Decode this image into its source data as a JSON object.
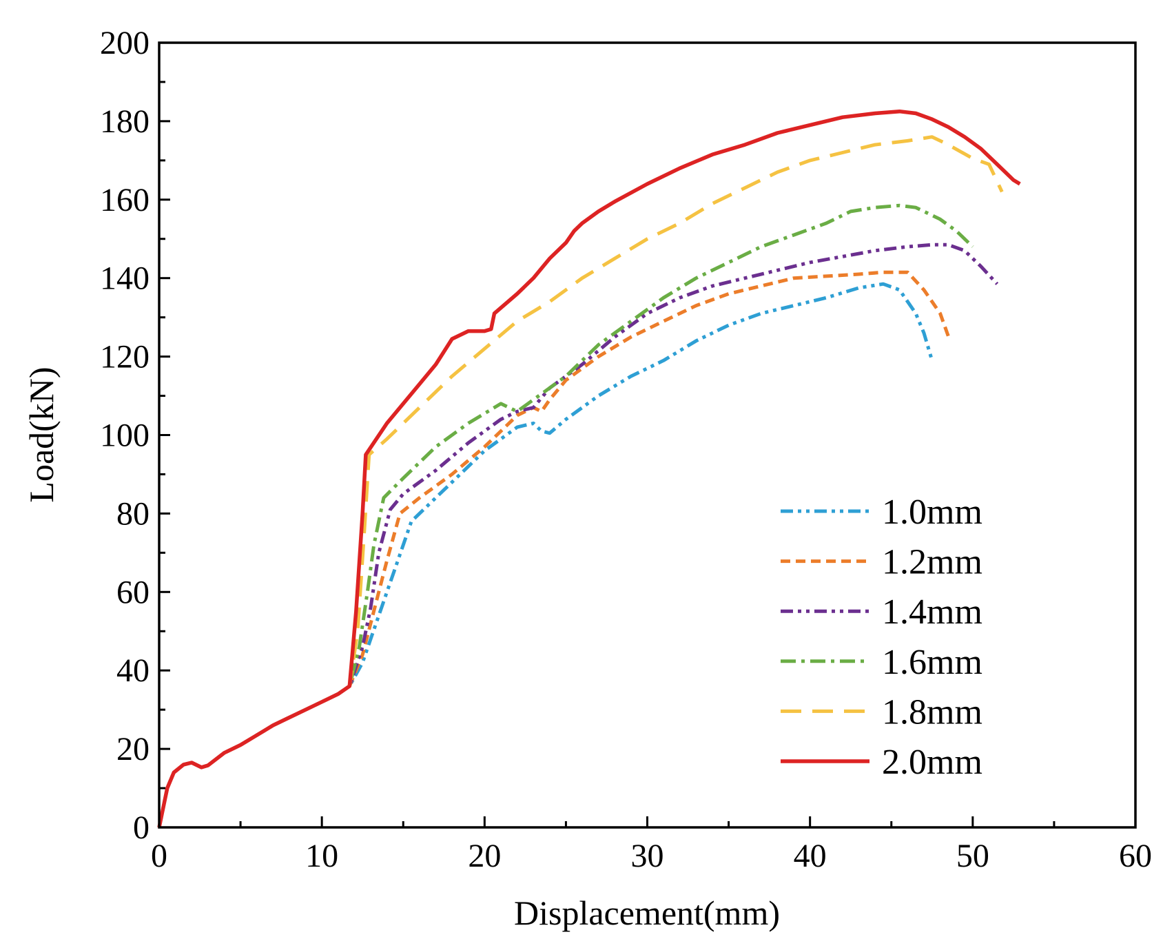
{
  "chart_data": {
    "type": "line",
    "title": "",
    "xlabel": "Displacement(mm)",
    "ylabel": "Load(kN)",
    "xlim": [
      0,
      60
    ],
    "ylim": [
      0,
      200
    ],
    "x_ticks": [
      0,
      10,
      20,
      30,
      40,
      50,
      60
    ],
    "y_ticks": [
      0,
      20,
      40,
      60,
      80,
      100,
      120,
      140,
      160,
      180,
      200
    ],
    "grid": false,
    "legend_position": "bottom-right",
    "series": [
      {
        "name": "1.0mm",
        "color": "#2e9fd4",
        "dash": "dash-dot-dot",
        "points": [
          [
            0,
            0
          ],
          [
            0.5,
            10
          ],
          [
            0.9,
            14
          ],
          [
            1.5,
            16
          ],
          [
            2.0,
            16.5
          ],
          [
            2.6,
            15.3
          ],
          [
            3.0,
            15.8
          ],
          [
            4.0,
            19
          ],
          [
            5.0,
            21
          ],
          [
            6.0,
            23.5
          ],
          [
            7.0,
            26
          ],
          [
            8.0,
            28
          ],
          [
            9.0,
            30
          ],
          [
            10.0,
            32
          ],
          [
            11.0,
            34
          ],
          [
            11.7,
            36
          ],
          [
            12.5,
            42
          ],
          [
            13.0,
            48
          ],
          [
            14.0,
            60
          ],
          [
            15.0,
            72
          ],
          [
            15.5,
            78
          ],
          [
            16.5,
            82
          ],
          [
            17.5,
            86
          ],
          [
            19.0,
            92
          ],
          [
            20.0,
            96
          ],
          [
            21.0,
            99
          ],
          [
            22.0,
            102
          ],
          [
            23.0,
            103
          ],
          [
            23.5,
            101
          ],
          [
            24.0,
            100.5
          ],
          [
            25.0,
            104
          ],
          [
            27.0,
            110
          ],
          [
            29.0,
            115
          ],
          [
            31.0,
            119
          ],
          [
            33.0,
            124
          ],
          [
            35.0,
            128
          ],
          [
            37.0,
            131
          ],
          [
            39.0,
            133
          ],
          [
            41.0,
            135
          ],
          [
            43.0,
            137.5
          ],
          [
            44.5,
            138.5
          ],
          [
            45.5,
            137
          ],
          [
            46.5,
            131
          ],
          [
            47.0,
            126
          ],
          [
            47.5,
            119
          ]
        ]
      },
      {
        "name": "1.2mm",
        "color": "#ec7d2a",
        "dash": "short-dash",
        "points": [
          [
            0,
            0
          ],
          [
            0.5,
            10
          ],
          [
            0.9,
            14
          ],
          [
            1.5,
            16
          ],
          [
            2.0,
            16.5
          ],
          [
            2.6,
            15.3
          ],
          [
            3.0,
            15.8
          ],
          [
            4.0,
            19
          ],
          [
            5.0,
            21
          ],
          [
            6.0,
            23.5
          ],
          [
            7.0,
            26
          ],
          [
            8.0,
            28
          ],
          [
            9.0,
            30
          ],
          [
            10.0,
            32
          ],
          [
            11.0,
            34
          ],
          [
            11.7,
            36
          ],
          [
            12.5,
            44
          ],
          [
            13.0,
            52
          ],
          [
            14.0,
            68
          ],
          [
            14.8,
            80
          ],
          [
            16.0,
            84
          ],
          [
            18.0,
            90
          ],
          [
            20.0,
            97
          ],
          [
            21.0,
            101
          ],
          [
            22.0,
            105
          ],
          [
            23.0,
            107
          ],
          [
            23.5,
            106
          ],
          [
            24.0,
            109
          ],
          [
            25.0,
            114
          ],
          [
            27.0,
            120
          ],
          [
            29.0,
            125
          ],
          [
            31.0,
            129
          ],
          [
            33.0,
            133
          ],
          [
            35.0,
            136
          ],
          [
            37.0,
            138
          ],
          [
            39.0,
            140
          ],
          [
            41.0,
            140.5
          ],
          [
            43.0,
            141
          ],
          [
            44.5,
            141.5
          ],
          [
            46.0,
            141.5
          ],
          [
            47.0,
            137
          ],
          [
            48.0,
            131
          ],
          [
            48.6,
            124
          ]
        ]
      },
      {
        "name": "1.4mm",
        "color": "#6b2f8f",
        "dash": "dash-dot-dot",
        "points": [
          [
            0,
            0
          ],
          [
            0.5,
            10
          ],
          [
            0.9,
            14
          ],
          [
            1.5,
            16
          ],
          [
            2.0,
            16.5
          ],
          [
            2.6,
            15.3
          ],
          [
            3.0,
            15.8
          ],
          [
            4.0,
            19
          ],
          [
            5.0,
            21
          ],
          [
            6.0,
            23.5
          ],
          [
            7.0,
            26
          ],
          [
            8.0,
            28
          ],
          [
            9.0,
            30
          ],
          [
            10.0,
            32
          ],
          [
            11.0,
            34
          ],
          [
            11.7,
            36
          ],
          [
            12.5,
            46
          ],
          [
            13.0,
            56
          ],
          [
            13.5,
            70
          ],
          [
            14.2,
            81
          ],
          [
            15.0,
            85
          ],
          [
            17.0,
            91
          ],
          [
            19.0,
            98
          ],
          [
            21.0,
            104
          ],
          [
            22.0,
            106
          ],
          [
            23.0,
            107
          ],
          [
            24.0,
            112
          ],
          [
            26.0,
            118
          ],
          [
            28.0,
            125
          ],
          [
            30.0,
            131
          ],
          [
            32.0,
            135
          ],
          [
            34.0,
            138
          ],
          [
            36.0,
            140
          ],
          [
            38.0,
            142
          ],
          [
            40.0,
            144
          ],
          [
            42.0,
            145.5
          ],
          [
            44.0,
            147
          ],
          [
            46.0,
            148
          ],
          [
            47.5,
            148.5
          ],
          [
            48.5,
            148.5
          ],
          [
            49.5,
            147
          ],
          [
            50.5,
            143
          ],
          [
            51.5,
            138.5
          ]
        ]
      },
      {
        "name": "1.6mm",
        "color": "#6aad45",
        "dash": "dash-dot",
        "points": [
          [
            0,
            0
          ],
          [
            0.5,
            10
          ],
          [
            0.9,
            14
          ],
          [
            1.5,
            16
          ],
          [
            2.0,
            16.5
          ],
          [
            2.6,
            15.3
          ],
          [
            3.0,
            15.8
          ],
          [
            4.0,
            19
          ],
          [
            5.0,
            21
          ],
          [
            6.0,
            23.5
          ],
          [
            7.0,
            26
          ],
          [
            8.0,
            28
          ],
          [
            9.0,
            30
          ],
          [
            10.0,
            32
          ],
          [
            11.0,
            34
          ],
          [
            11.7,
            36
          ],
          [
            12.3,
            46
          ],
          [
            12.8,
            60
          ],
          [
            13.2,
            72
          ],
          [
            13.8,
            84
          ],
          [
            15.0,
            89
          ],
          [
            17.0,
            97
          ],
          [
            19.0,
            103
          ],
          [
            21.0,
            108
          ],
          [
            22.0,
            106
          ],
          [
            23.0,
            109
          ],
          [
            25.0,
            115
          ],
          [
            27.0,
            123
          ],
          [
            29.0,
            129
          ],
          [
            31.0,
            135
          ],
          [
            33.0,
            140
          ],
          [
            35.0,
            144
          ],
          [
            37.0,
            148
          ],
          [
            39.0,
            151
          ],
          [
            41.0,
            154
          ],
          [
            42.5,
            157
          ],
          [
            44.0,
            158
          ],
          [
            45.5,
            158.5
          ],
          [
            46.5,
            158
          ],
          [
            48.0,
            155
          ],
          [
            49.0,
            152
          ],
          [
            50.0,
            148
          ]
        ]
      },
      {
        "name": "1.8mm",
        "color": "#f5c242",
        "dash": "long-dash",
        "points": [
          [
            0,
            0
          ],
          [
            0.5,
            10
          ],
          [
            0.9,
            14
          ],
          [
            1.5,
            16
          ],
          [
            2.0,
            16.5
          ],
          [
            2.6,
            15.3
          ],
          [
            3.0,
            15.8
          ],
          [
            4.0,
            19
          ],
          [
            5.0,
            21
          ],
          [
            6.0,
            23.5
          ],
          [
            7.0,
            26
          ],
          [
            8.0,
            28
          ],
          [
            9.0,
            30
          ],
          [
            10.0,
            32
          ],
          [
            11.0,
            34
          ],
          [
            11.7,
            36
          ],
          [
            12.2,
            50
          ],
          [
            12.6,
            75
          ],
          [
            12.9,
            95
          ],
          [
            14.0,
            99
          ],
          [
            16.0,
            107
          ],
          [
            18.0,
            115
          ],
          [
            20.0,
            122
          ],
          [
            22.0,
            129
          ],
          [
            24.0,
            134
          ],
          [
            26.0,
            140
          ],
          [
            28.0,
            145
          ],
          [
            30.0,
            150
          ],
          [
            32.0,
            154
          ],
          [
            34.0,
            159
          ],
          [
            36.0,
            163
          ],
          [
            38.0,
            167
          ],
          [
            40.0,
            170
          ],
          [
            42.0,
            172
          ],
          [
            44.0,
            174
          ],
          [
            46.0,
            175
          ],
          [
            47.5,
            176
          ],
          [
            48.5,
            174
          ],
          [
            50.0,
            170.5
          ],
          [
            51.0,
            169
          ],
          [
            51.8,
            162
          ]
        ]
      },
      {
        "name": "2.0mm",
        "color": "#dd2323",
        "dash": "solid",
        "points": [
          [
            0,
            0
          ],
          [
            0.5,
            10
          ],
          [
            0.9,
            14
          ],
          [
            1.5,
            16
          ],
          [
            2.0,
            16.5
          ],
          [
            2.6,
            15.3
          ],
          [
            3.0,
            15.8
          ],
          [
            4.0,
            19
          ],
          [
            5.0,
            21
          ],
          [
            6.0,
            23.5
          ],
          [
            7.0,
            26
          ],
          [
            8.0,
            28
          ],
          [
            9.0,
            30
          ],
          [
            10.0,
            32
          ],
          [
            11.0,
            34
          ],
          [
            11.7,
            36
          ],
          [
            12.1,
            55
          ],
          [
            12.5,
            80
          ],
          [
            12.7,
            95
          ],
          [
            14.0,
            103
          ],
          [
            15.0,
            108
          ],
          [
            16.0,
            113
          ],
          [
            17.0,
            118
          ],
          [
            18.0,
            124.5
          ],
          [
            19.0,
            126.5
          ],
          [
            20.0,
            126.5
          ],
          [
            20.4,
            127
          ],
          [
            20.6,
            131
          ],
          [
            22.0,
            136
          ],
          [
            23.0,
            140
          ],
          [
            24.0,
            145
          ],
          [
            25.0,
            149
          ],
          [
            25.5,
            152
          ],
          [
            26.0,
            154
          ],
          [
            27.0,
            157
          ],
          [
            28.0,
            159.5
          ],
          [
            30.0,
            164
          ],
          [
            32.0,
            168
          ],
          [
            34.0,
            171.5
          ],
          [
            36.0,
            174
          ],
          [
            38.0,
            177
          ],
          [
            40.0,
            179
          ],
          [
            42.0,
            181
          ],
          [
            44.0,
            182
          ],
          [
            45.5,
            182.5
          ],
          [
            46.5,
            182
          ],
          [
            47.5,
            180.5
          ],
          [
            48.5,
            178.5
          ],
          [
            49.5,
            176
          ],
          [
            50.5,
            173
          ],
          [
            51.5,
            169
          ],
          [
            52.5,
            165
          ],
          [
            52.9,
            164
          ]
        ]
      }
    ]
  }
}
